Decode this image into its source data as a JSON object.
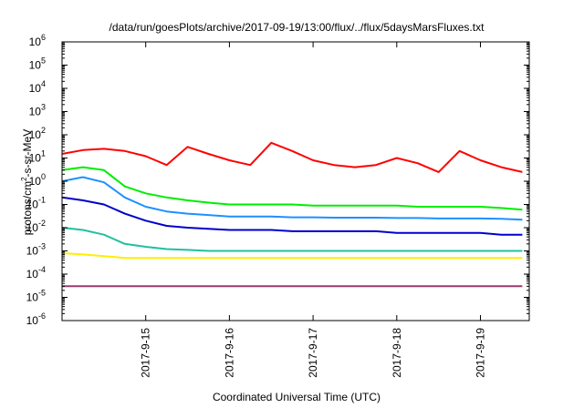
{
  "chart_data": {
    "type": "line",
    "title": "/data/run/goesPlots/archive/2017-09-19/13:00/flux/../flux/5daysMarsFluxes.txt",
    "xlabel": "Coordinated Universal Time (UTC)",
    "ylabel_parts": [
      "protons/cm",
      "2",
      "-s-sr-MeV"
    ],
    "yscale": "log",
    "ylim": [
      1e-06,
      1000000.0
    ],
    "y_ticks": [
      {
        "value": 1e-06,
        "base": "10",
        "exp": "-6"
      },
      {
        "value": 1e-05,
        "base": "10",
        "exp": "-5"
      },
      {
        "value": 0.0001,
        "base": "10",
        "exp": "-4"
      },
      {
        "value": 0.001,
        "base": "10",
        "exp": "-3"
      },
      {
        "value": 0.01,
        "base": "10",
        "exp": "-2"
      },
      {
        "value": 0.1,
        "base": "10",
        "exp": "-1"
      },
      {
        "value": 1,
        "base": "10",
        "exp": "0"
      },
      {
        "value": 10,
        "base": "10",
        "exp": "1"
      },
      {
        "value": 100,
        "base": "10",
        "exp": "2"
      },
      {
        "value": 1000,
        "base": "10",
        "exp": "3"
      },
      {
        "value": 10000,
        "base": "10",
        "exp": "4"
      },
      {
        "value": 100000,
        "base": "10",
        "exp": "5"
      },
      {
        "value": 1000000,
        "base": "10",
        "exp": "6"
      }
    ],
    "xlim": [
      "2017-09-14T00:00",
      "2017-09-19T14:00"
    ],
    "x_ticks": [
      {
        "value": "2017-09-15",
        "label": "2017-9-15"
      },
      {
        "value": "2017-09-16",
        "label": "2017-9-16"
      },
      {
        "value": "2017-09-17",
        "label": "2017-9-17"
      },
      {
        "value": "2017-09-18",
        "label": "2017-9-18"
      },
      {
        "value": "2017-09-19",
        "label": "2017-9-19"
      }
    ],
    "x": [
      "2017-09-14T00:00",
      "2017-09-14T06:00",
      "2017-09-14T12:00",
      "2017-09-14T18:00",
      "2017-09-15T00:00",
      "2017-09-15T06:00",
      "2017-09-15T12:00",
      "2017-09-15T18:00",
      "2017-09-16T00:00",
      "2017-09-16T06:00",
      "2017-09-16T12:00",
      "2017-09-16T18:00",
      "2017-09-17T00:00",
      "2017-09-17T06:00",
      "2017-09-17T12:00",
      "2017-09-17T18:00",
      "2017-09-18T00:00",
      "2017-09-18T06:00",
      "2017-09-18T12:00",
      "2017-09-18T18:00",
      "2017-09-19T00:00",
      "2017-09-19T06:00",
      "2017-09-19T12:00"
    ],
    "series": [
      {
        "color": "#ff0000",
        "values": [
          15,
          22,
          25,
          20,
          12,
          5,
          30,
          15,
          8,
          5,
          45,
          20,
          8,
          5,
          4,
          5,
          10,
          6,
          2.5,
          20,
          8,
          4,
          2.5
        ]
      },
      {
        "color": "#00ee00",
        "values": [
          3,
          4,
          3,
          0.6,
          0.3,
          0.2,
          0.15,
          0.12,
          0.1,
          0.1,
          0.1,
          0.1,
          0.09,
          0.09,
          0.09,
          0.09,
          0.09,
          0.08,
          0.08,
          0.08,
          0.08,
          0.07,
          0.06
        ]
      },
      {
        "color": "#1e90ff",
        "values": [
          1,
          1.5,
          0.9,
          0.2,
          0.08,
          0.05,
          0.04,
          0.035,
          0.03,
          0.03,
          0.03,
          0.028,
          0.028,
          0.027,
          0.027,
          0.027,
          0.026,
          0.026,
          0.025,
          0.025,
          0.025,
          0.024,
          0.022
        ]
      },
      {
        "color": "#0000cc",
        "values": [
          0.2,
          0.15,
          0.1,
          0.04,
          0.02,
          0.012,
          0.01,
          0.009,
          0.008,
          0.008,
          0.008,
          0.007,
          0.007,
          0.007,
          0.007,
          0.007,
          0.006,
          0.006,
          0.006,
          0.006,
          0.006,
          0.005,
          0.005
        ]
      },
      {
        "color": "#20c0a0",
        "values": [
          0.01,
          0.008,
          0.005,
          0.002,
          0.0015,
          0.0012,
          0.0011,
          0.001,
          0.001,
          0.001,
          0.001,
          0.001,
          0.001,
          0.001,
          0.001,
          0.001,
          0.001,
          0.001,
          0.001,
          0.001,
          0.001,
          0.001,
          0.001
        ]
      },
      {
        "color": "#ffee00",
        "values": [
          0.0008,
          0.0007,
          0.0006,
          0.0005,
          0.0005,
          0.0005,
          0.0005,
          0.0005,
          0.0005,
          0.0005,
          0.0005,
          0.0005,
          0.0005,
          0.0005,
          0.0005,
          0.0005,
          0.0005,
          0.0005,
          0.0005,
          0.0005,
          0.0005,
          0.0005,
          0.0005
        ]
      },
      {
        "color": "#9e3a6e",
        "values": [
          3e-05,
          3e-05,
          3e-05,
          3e-05,
          3e-05,
          3e-05,
          3e-05,
          3e-05,
          3e-05,
          3e-05,
          3e-05,
          3e-05,
          3e-05,
          3e-05,
          3e-05,
          3e-05,
          3e-05,
          3e-05,
          3e-05,
          3e-05,
          3e-05,
          3e-05,
          3e-05
        ]
      }
    ],
    "grid": false,
    "legend": "none"
  }
}
